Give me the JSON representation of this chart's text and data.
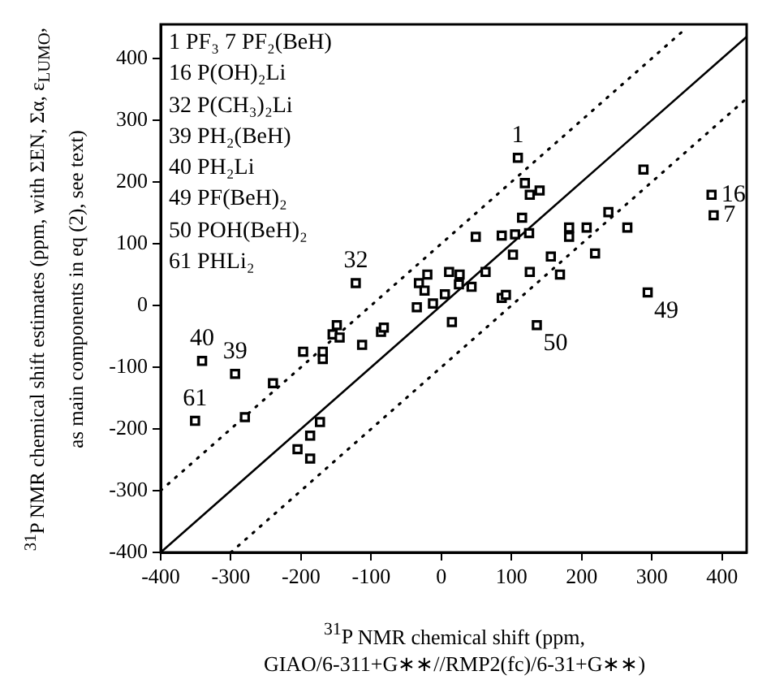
{
  "chart_data": {
    "type": "scatter",
    "xlabel": "$^{31}$P NMR chemical shift (ppm, GIAO/6-311+G∗∗//RMP2(fc)/6-31+G∗∗)",
    "ylabel": "$^{31}$P NMR chemical shift estimates (ppm, with  ΣEN, Σα, ε$_{LUMO}$, as main components in eq (2), see text)",
    "xlim": [
      -400,
      435
    ],
    "ylim": [
      -400,
      455
    ],
    "xticks": [
      -400,
      -300,
      -200,
      -100,
      0,
      100,
      200,
      300,
      400
    ],
    "yticks": [
      -400,
      -300,
      -200,
      -100,
      0,
      100,
      200,
      300,
      400
    ],
    "grid": false,
    "legend": false,
    "marker": "square",
    "series": [
      {
        "type": "scatter",
        "color": "#000000",
        "x": [
          -341,
          -294,
          -351,
          -280,
          -240,
          -197,
          -169,
          -169,
          -149,
          -155,
          -145,
          -113,
          -86,
          -82,
          -122,
          -35,
          -12,
          -32,
          -20,
          -24,
          5,
          -173,
          -187,
          -205,
          -187,
          109,
          119,
          126,
          140,
          115,
          49,
          86,
          105,
          125,
          102,
          156,
          182,
          182,
          207,
          238,
          265,
          219,
          288,
          385,
          388,
          126,
          169,
          63,
          11,
          26,
          25,
          43,
          86,
          92,
          15,
          136,
          294
        ],
        "values": [
          -90,
          -111,
          -187,
          -181,
          -126,
          -75,
          -75,
          -87,
          -32,
          -47,
          -52,
          -64,
          -43,
          -36,
          36,
          -3,
          3,
          36,
          50,
          24,
          18,
          -189,
          -211,
          -233,
          -248,
          239,
          198,
          179,
          186,
          142,
          111,
          113,
          115,
          117,
          82,
          79,
          126,
          111,
          126,
          151,
          126,
          84,
          220,
          179,
          146,
          54,
          50,
          54,
          54,
          50,
          34,
          30,
          12,
          17,
          -27,
          -32,
          21
        ]
      },
      {
        "type": "line",
        "color": "#000000",
        "line_style": "solid",
        "marker": "none",
        "x": [
          -400,
          435
        ],
        "values": [
          -400,
          435
        ]
      },
      {
        "type": "line",
        "color": "#000000",
        "line_style": "dotted",
        "marker": "none",
        "x": [
          -400,
          350
        ],
        "values": [
          -300,
          450
        ]
      },
      {
        "type": "line",
        "color": "#000000",
        "line_style": "dotted",
        "marker": "none",
        "x": [
          -300,
          435
        ],
        "values": [
          -400,
          335
        ]
      }
    ],
    "annotations": [
      "1 PF₃   7 PF₂(BeH)",
      "16 P(OH)₂Li",
      "32 P(CH₃)₂Li",
      "39 PH₂(BeH)",
      "40 PH₂Li",
      "49 PF(BeH)₂",
      "50 POH(BeH)₂",
      "61 PHLi₂",
      {
        "text": "1",
        "x": 109,
        "y": 239
      },
      {
        "text": "16",
        "x": 385,
        "y": 179
      },
      {
        "text": "7",
        "x": 388,
        "y": 146
      },
      {
        "text": "32",
        "x": -122,
        "y": 36
      },
      {
        "text": "40",
        "x": -341,
        "y": -90
      },
      {
        "text": "39",
        "x": -294,
        "y": -111
      },
      {
        "text": "61",
        "x": -351,
        "y": -187
      },
      {
        "text": "50",
        "x": 136,
        "y": -32
      },
      {
        "text": "49",
        "x": 294,
        "y": 21
      }
    ]
  }
}
